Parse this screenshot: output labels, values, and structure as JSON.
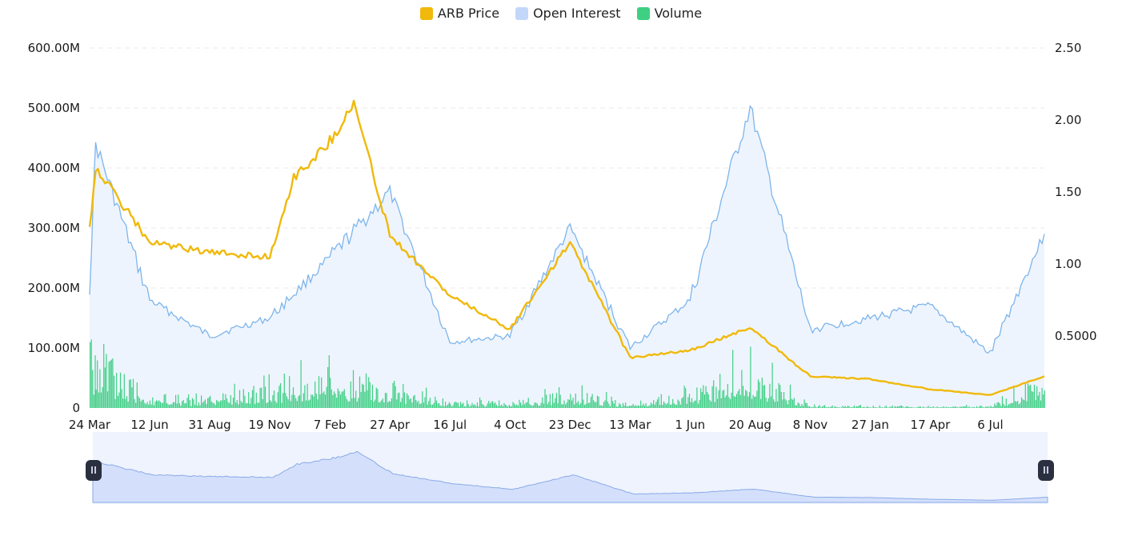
{
  "legend": [
    {
      "label": "ARB Price",
      "color": "#f0b90b"
    },
    {
      "label": "Open Interest",
      "color": "#c3d7fb"
    },
    {
      "label": "Volume",
      "color": "#3ecf83"
    }
  ],
  "chart_data": {
    "type": "line",
    "title": "",
    "xlabel": "",
    "ylabel_left": "",
    "ylabel_right": "",
    "x_ticks": [
      "24 Mar",
      "12 Jun",
      "31 Aug",
      "19 Nov",
      "7 Feb",
      "27 Apr",
      "16 Jul",
      "4 Oct",
      "23 Dec",
      "13 Mar",
      "1 Jun",
      "20 Aug",
      "8 Nov",
      "27 Jan",
      "17 Apr",
      "6 Jul"
    ],
    "y_left_ticks": [
      "0",
      "100.00M",
      "200.00M",
      "300.00M",
      "400.00M",
      "500.00M",
      "600.00M"
    ],
    "y_right_ticks": [
      "0.5000",
      "1.00",
      "1.50",
      "2.00",
      "2.50"
    ],
    "ylim_left": [
      0,
      600000000
    ],
    "ylim_right": [
      0,
      2.5
    ],
    "grid": true,
    "legend_position": "top-center",
    "series": [
      {
        "name": "ARB Price",
        "axis": "right",
        "color": "#f0b90b",
        "x": [
          "24 Mar",
          "31 Mar",
          "12 Jun",
          "31 Aug",
          "19 Nov",
          "20 Dec",
          "7 Feb",
          "10 Mar",
          "27 Apr",
          "16 Jul",
          "4 Oct",
          "23 Dec",
          "13 Mar",
          "1 Jun",
          "20 Aug",
          "8 Nov",
          "27 Jan",
          "17 Apr",
          "6 Jul",
          "20 Aug"
        ],
        "values": [
          1.25,
          1.67,
          1.15,
          1.08,
          1.05,
          1.6,
          1.85,
          2.12,
          1.2,
          0.78,
          0.55,
          1.15,
          0.35,
          0.4,
          0.56,
          0.22,
          0.2,
          0.13,
          0.09,
          0.22
        ]
      },
      {
        "name": "Open Interest",
        "axis": "left",
        "color": "#7cb5ec",
        "x": [
          "24 Mar",
          "31 Mar",
          "12 Jun",
          "31 Aug",
          "19 Nov",
          "7 Feb",
          "27 Apr",
          "16 Jul",
          "4 Oct",
          "23 Dec",
          "13 Mar",
          "1 Jun",
          "20 Aug",
          "8 Nov",
          "27 Jan",
          "17 Apr",
          "6 Jul",
          "20 Aug"
        ],
        "values": [
          200000000,
          440000000,
          180000000,
          120000000,
          150000000,
          250000000,
          360000000,
          110000000,
          120000000,
          300000000,
          100000000,
          180000000,
          500000000,
          130000000,
          150000000,
          170000000,
          90000000,
          290000000
        ]
      },
      {
        "name": "Volume",
        "axis": "left",
        "color": "#3ecf83",
        "x": [
          "24 Mar",
          "31 Mar",
          "12 Jun",
          "31 Aug",
          "19 Nov",
          "7 Feb",
          "27 Apr",
          "16 Jul",
          "4 Oct",
          "23 Dec",
          "13 Mar",
          "1 Jun",
          "20 Aug",
          "8 Nov",
          "27 Jan",
          "17 Apr",
          "6 Jul",
          "20 Aug"
        ],
        "values": [
          140000000,
          90000000,
          20000000,
          15000000,
          40000000,
          60000000,
          40000000,
          12000000,
          10000000,
          30000000,
          5000000,
          30000000,
          70000000,
          5000000,
          3000000,
          3000000,
          3000000,
          50000000
        ]
      }
    ]
  }
}
